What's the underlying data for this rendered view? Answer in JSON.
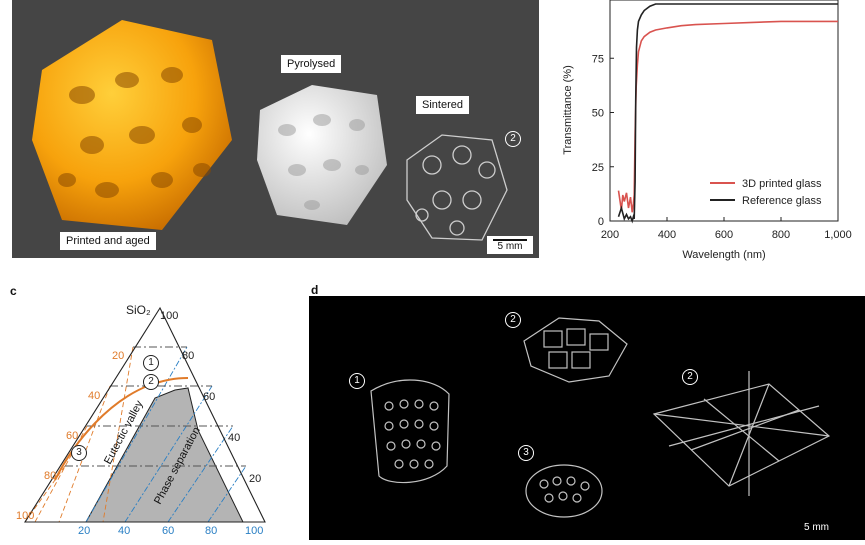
{
  "panel_a": {
    "labels": {
      "printed": "Printed and aged",
      "pyrolysed": "Pyrolysed",
      "sintered": "Sintered"
    },
    "badge": "2",
    "scale_bar": "5 mm"
  },
  "panel_b": {
    "chart_data": {
      "type": "line",
      "xlabel": "Wavelength (nm)",
      "ylabel": "Transmittance (%)",
      "xlim": [
        200,
        1000
      ],
      "ylim": [
        0,
        100
      ],
      "xticks": [
        "200",
        "400",
        "600",
        "800",
        "1,000"
      ],
      "yticks": [
        "0",
        "25",
        "50",
        "75"
      ],
      "legend_position": "bottom-right",
      "series": [
        {
          "name": "3D printed glass",
          "color": "#d9534f",
          "x": [
            230,
            240,
            245,
            250,
            258,
            265,
            272,
            278,
            282,
            285,
            288,
            292,
            296,
            300,
            310,
            320,
            340,
            360,
            400,
            450,
            500,
            600,
            700,
            800,
            900,
            1000
          ],
          "y": [
            14,
            5,
            12,
            9,
            13,
            6,
            11,
            4,
            8,
            12,
            40,
            62,
            72,
            78,
            83,
            85,
            87,
            88,
            89,
            90,
            90.5,
            91,
            91.5,
            92,
            92,
            92
          ]
        },
        {
          "name": "Reference glass",
          "color": "#222222",
          "x": [
            230,
            240,
            250,
            258,
            265,
            272,
            278,
            282,
            285,
            288,
            290,
            293,
            296,
            300,
            310,
            320,
            340,
            360,
            380,
            400,
            450,
            500,
            600,
            700,
            800,
            900,
            1000
          ],
          "y": [
            2,
            6,
            1,
            3,
            1,
            2,
            0,
            2,
            1,
            18,
            55,
            80,
            88,
            92,
            95,
            97,
            99,
            100,
            100,
            100,
            100,
            100,
            100,
            100,
            100,
            100,
            100
          ]
        }
      ]
    }
  },
  "panel_c": {
    "letter": "c",
    "apex": "SiO₂",
    "left_ticks": [
      "20",
      "40",
      "60",
      "80",
      "100"
    ],
    "right_ticks": [
      "100",
      "80",
      "60",
      "40",
      "20"
    ],
    "bottom_ticks": [
      "20",
      "40",
      "60",
      "80",
      "100"
    ],
    "labels": {
      "eutectic": "Eutectic valley",
      "phase": "Phase separation"
    },
    "badges": [
      "1",
      "2",
      "3"
    ],
    "colors": {
      "orange": "#e07b2a",
      "blue": "#2a7fc4",
      "gray": "#b4b4b4"
    }
  },
  "panel_d": {
    "letter": "d",
    "badges": [
      "1",
      "2",
      "2",
      "3"
    ],
    "scale_bar": "5 mm"
  }
}
